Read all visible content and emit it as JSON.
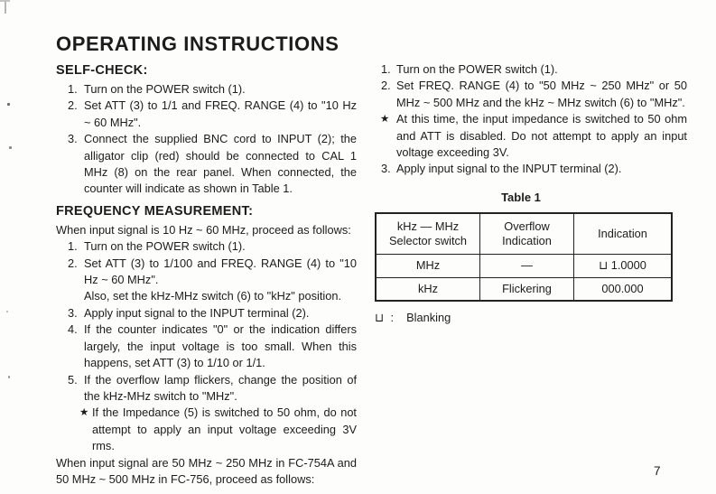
{
  "title": "OPERATING INSTRUCTIONS",
  "page_number": "7",
  "left": {
    "self_check": {
      "heading": "SELF-CHECK:",
      "items": [
        {
          "num": "1.",
          "text": "Turn on the POWER switch (1)."
        },
        {
          "num": "2.",
          "text": "Set ATT (3) to 1/1 and FREQ. RANGE (4) to \"10 Hz ~ 60 MHz\"."
        },
        {
          "num": "3.",
          "text": "Connect the supplied BNC cord to INPUT (2); the alligator clip (red) should be connected to CAL 1 MHz (8) on the rear panel.  When connected, the counter will indicate as shown in Table 1."
        }
      ]
    },
    "frequency": {
      "heading": "FREQUENCY MEASUREMENT:",
      "intro": "When input signal is 10 Hz ~ 60 MHz, proceed as follows:",
      "items": [
        {
          "num": "1.",
          "text": "Turn on the POWER switch (1)."
        },
        {
          "num": "2.",
          "text": "Set ATT (3) to 1/100 and FREQ. RANGE (4) to \"10 Hz ~ 60 MHz\".",
          "extra": "Also, set the kHz-MHz switch (6) to \"kHz\" position."
        },
        {
          "num": "3.",
          "text": "Apply input signal to the INPUT terminal (2)."
        },
        {
          "num": "4.",
          "text": "If the counter indicates \"0\" or the indication differs largely, the input voltage is too small.  When this happens, set ATT (3) to 1/10 or 1/1."
        },
        {
          "num": "5.",
          "text": "If the overflow lamp flickers, change the position of the kHz-MHz switch to \"MHz\"."
        }
      ],
      "star_note": {
        "symbol": "★",
        "text": "If the Impedance (5) is switched to 50 ohm, do not attempt to apply an input voltage exceeding 3V rms."
      },
      "closing": "When input signal are 50 MHz ~ 250 MHz in FC-754A and 50 MHz ~ 500 MHz in FC-756, proceed as follows:"
    }
  },
  "right": {
    "items": [
      {
        "num": "1.",
        "text": "Turn on the POWER switch (1)."
      },
      {
        "num": "2.",
        "text": "Set FREQ. RANGE (4) to \"50 MHz ~ 250 MHz\" or 50 MHz ~ 500 MHz and the kHz ~ MHz switch (6) to \"MHz\"."
      }
    ],
    "star_note": {
      "symbol": "★",
      "text": "At this time, the input impedance is switched to 50 ohm and ATT is disabled.  Do not attempt to apply an input voltage exceeding 3V."
    },
    "item3": {
      "num": "3.",
      "text": "Apply input signal to the INPUT terminal (2)."
    },
    "table": {
      "caption": "Table 1",
      "headers": [
        "kHz — MHz\nSelector switch",
        "Overflow\nIndication",
        "Indication"
      ],
      "rows": [
        [
          "MHz",
          "—",
          "⊔ 1.0000"
        ],
        [
          "kHz",
          "Flickering",
          "000.000"
        ]
      ]
    },
    "legend": {
      "symbol": "⊔ :",
      "text": "Blanking"
    }
  }
}
